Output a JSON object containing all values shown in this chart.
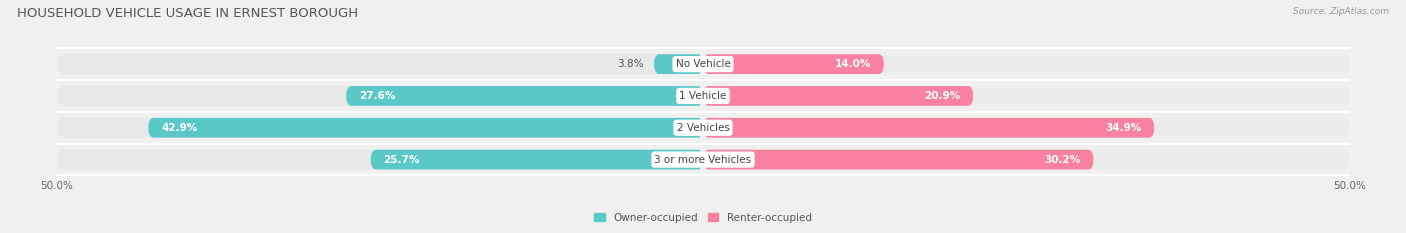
{
  "title": "HOUSEHOLD VEHICLE USAGE IN ERNEST BOROUGH",
  "source": "Source: ZipAtlas.com",
  "categories": [
    "No Vehicle",
    "1 Vehicle",
    "2 Vehicles",
    "3 or more Vehicles"
  ],
  "owner_values": [
    3.8,
    27.6,
    42.9,
    25.7
  ],
  "renter_values": [
    14.0,
    20.9,
    34.9,
    30.2
  ],
  "owner_color": "#5BC8C8",
  "renter_color": "#F7819F",
  "background_color": "#f0f0f0",
  "bar_bg_left_color": "#e8e8e8",
  "bar_bg_right_color": "#ebebeb",
  "axis_max": 50.0,
  "legend_owner": "Owner-occupied",
  "legend_renter": "Renter-occupied",
  "title_fontsize": 9.5,
  "label_fontsize": 7.5,
  "tick_fontsize": 7.5,
  "bar_height": 0.62,
  "white_sep_linewidth": 1.5
}
